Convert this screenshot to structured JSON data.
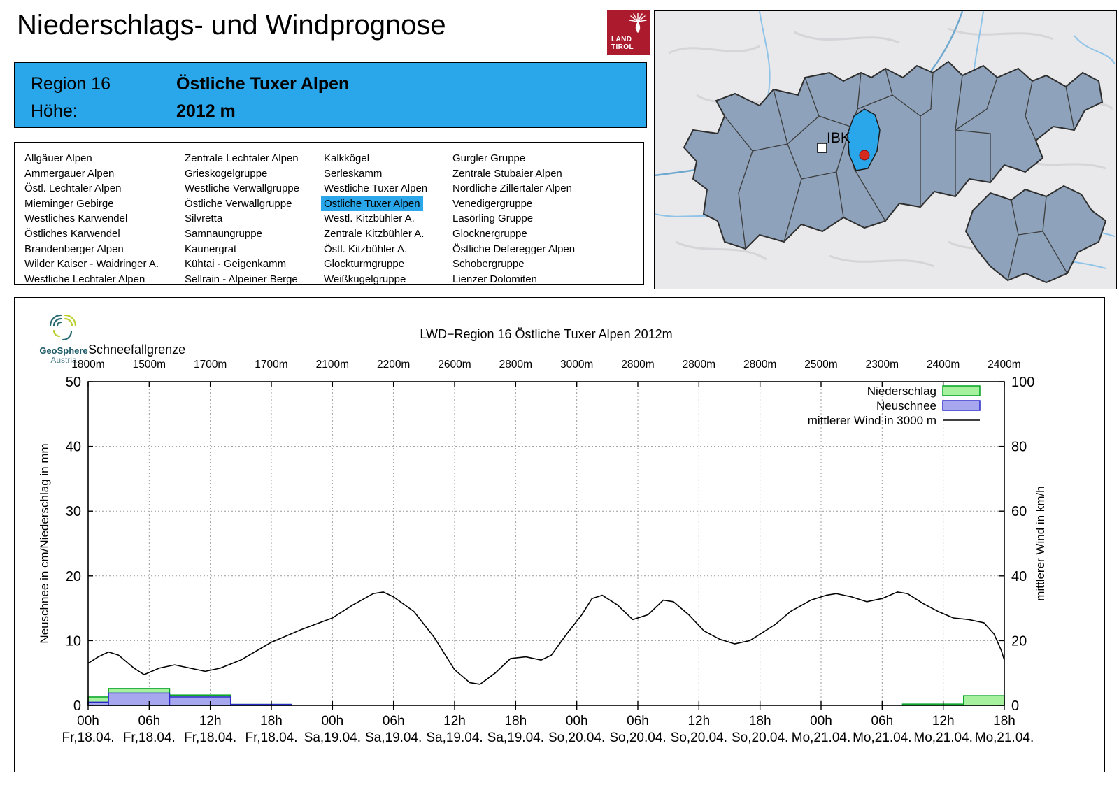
{
  "header": {
    "title": "Niederschlags- und Windprognose"
  },
  "logo": {
    "line1": "LAND",
    "line2": "TIROL"
  },
  "region_box": {
    "region_label": "Region 16",
    "region_name": "Östliche Tuxer Alpen",
    "hoehe_label": "Höhe:",
    "hoehe_value": "2012 m"
  },
  "region_list": {
    "selected": "Östliche Tuxer Alpen",
    "columns": [
      [
        "Allgäuer Alpen",
        "Ammergauer Alpen",
        "Östl. Lechtaler Alpen",
        "Mieminger Gebirge",
        "Westliches Karwendel",
        "Östliches Karwendel",
        "Brandenberger Alpen",
        "Wilder Kaiser - Waidringer A.",
        "Westliche Lechtaler Alpen"
      ],
      [
        "Zentrale Lechtaler Alpen",
        "Grieskogelgruppe",
        "Westliche Verwallgruppe",
        "Östliche Verwallgruppe",
        "Silvretta",
        "Samnaungruppe",
        "Kaunergrat",
        "Kühtai - Geigenkamm",
        "Sellrain - Alpeiner Berge"
      ],
      [
        "Kalkkögel",
        "Serleskamm",
        "Westliche Tuxer Alpen",
        "Östliche Tuxer Alpen",
        "Westl. Kitzbühler A.",
        "Zentrale Kitzbühler A.",
        "Östl. Kitzbühler A.",
        "Glockturmgruppe",
        "Weißkugelgruppe"
      ],
      [
        "Gurgler Gruppe",
        "Zentrale Stubaier Alpen",
        "Nördliche Zillertaler Alpen",
        "Venedigergruppe",
        "Lasörling Gruppe",
        "Glocknergruppe",
        "Östliche Deferegger Alpen",
        "Schobergruppe",
        "Lienzer Dolomiten"
      ]
    ]
  },
  "map": {
    "city_label": "IBK",
    "highlight_color": "#29A7EA",
    "marker_color": "#D42B1E"
  },
  "geosphere": {
    "name": "GeoSphere",
    "sub": "Austria"
  },
  "chart_data": {
    "type": "line+bar",
    "title": "LWD−Region 16 Östliche Tuxer Alpen 2012m",
    "grid": true,
    "legend_position": "top-right",
    "x": {
      "span_hours": 90,
      "tick_step_hours": 6,
      "ticks": [
        {
          "hour": "00h",
          "date": "Fr,18.04."
        },
        {
          "hour": "06h",
          "date": "Fr,18.04."
        },
        {
          "hour": "12h",
          "date": "Fr,18.04."
        },
        {
          "hour": "18h",
          "date": "Fr,18.04."
        },
        {
          "hour": "00h",
          "date": "Sa,19.04."
        },
        {
          "hour": "06h",
          "date": "Sa,19.04."
        },
        {
          "hour": "12h",
          "date": "Sa,19.04."
        },
        {
          "hour": "18h",
          "date": "Sa,19.04."
        },
        {
          "hour": "00h",
          "date": "So,20.04."
        },
        {
          "hour": "06h",
          "date": "So,20.04."
        },
        {
          "hour": "12h",
          "date": "So,20.04."
        },
        {
          "hour": "18h",
          "date": "So,20.04."
        },
        {
          "hour": "00h",
          "date": "Mo,21.04."
        },
        {
          "hour": "06h",
          "date": "Mo,21.04."
        },
        {
          "hour": "12h",
          "date": "Mo,21.04."
        },
        {
          "hour": "18h",
          "date": "Mo,21.04."
        }
      ]
    },
    "snowline": {
      "label": "Schneefallgrenze",
      "unit": "m",
      "values": [
        1800,
        1500,
        1700,
        1700,
        2100,
        2200,
        2600,
        2800,
        3000,
        2800,
        2800,
        2800,
        2500,
        2300,
        2400,
        2400
      ]
    },
    "y_left": {
      "label": "Neuschnee in cm/Niederschlag in mm",
      "min": 0,
      "max": 50,
      "ticks": [
        0,
        10,
        20,
        30,
        40,
        50
      ]
    },
    "y_right": {
      "label": "mittlerer Wind in km/h",
      "min": 0,
      "max": 100,
      "ticks": [
        0,
        20,
        40,
        60,
        80,
        100
      ]
    },
    "series": [
      {
        "name": "Niederschlag",
        "type": "bar",
        "axis": "left",
        "unit": "mm",
        "fill": "#a6f19e",
        "border": "#00a321",
        "periods": [
          {
            "from_h": 0,
            "to_h": 2,
            "value": 1.3
          },
          {
            "from_h": 2,
            "to_h": 8,
            "value": 2.6
          },
          {
            "from_h": 8,
            "to_h": 14,
            "value": 1.6
          },
          {
            "from_h": 14,
            "to_h": 20,
            "value": 0.15
          },
          {
            "from_h": 80,
            "to_h": 86,
            "value": 0.2
          },
          {
            "from_h": 86,
            "to_h": 90,
            "value": 1.5
          }
        ]
      },
      {
        "name": "Neuschnee",
        "type": "bar",
        "axis": "left",
        "unit": "cm",
        "fill": "#a7a7ef",
        "border": "#2929c8",
        "periods": [
          {
            "from_h": 0,
            "to_h": 2,
            "value": 0.5
          },
          {
            "from_h": 2,
            "to_h": 8,
            "value": 1.9
          },
          {
            "from_h": 8,
            "to_h": 14,
            "value": 1.3
          },
          {
            "from_h": 14,
            "to_h": 20,
            "value": 0.15
          }
        ]
      },
      {
        "name": "mittlerer Wind in 3000 m",
        "type": "line",
        "axis": "right",
        "unit": "km/h",
        "color": "#000000",
        "points": [
          [
            0,
            13
          ],
          [
            1,
            15
          ],
          [
            2,
            16.5
          ],
          [
            3,
            15.5
          ],
          [
            4.5,
            11.5
          ],
          [
            5.5,
            9.5
          ],
          [
            7,
            11.5
          ],
          [
            8.5,
            12.5
          ],
          [
            10,
            11.5
          ],
          [
            11.5,
            10.5
          ],
          [
            13,
            11.5
          ],
          [
            15,
            14
          ],
          [
            18,
            19.5
          ],
          [
            21,
            23.5
          ],
          [
            24,
            27
          ],
          [
            26,
            31
          ],
          [
            28,
            34.5
          ],
          [
            29,
            35
          ],
          [
            30,
            33.5
          ],
          [
            32,
            29
          ],
          [
            34,
            21
          ],
          [
            36,
            11
          ],
          [
            37.5,
            7
          ],
          [
            38.5,
            6.5
          ],
          [
            40,
            10
          ],
          [
            41.5,
            14.5
          ],
          [
            43,
            15
          ],
          [
            44.5,
            14
          ],
          [
            45.5,
            15.5
          ],
          [
            47,
            22
          ],
          [
            48.5,
            28
          ],
          [
            49.5,
            33
          ],
          [
            50.5,
            34
          ],
          [
            52,
            31
          ],
          [
            53.5,
            26.5
          ],
          [
            55,
            28
          ],
          [
            56.5,
            32.5
          ],
          [
            57.5,
            32
          ],
          [
            59,
            28
          ],
          [
            60.5,
            23
          ],
          [
            62,
            20.5
          ],
          [
            63.5,
            19
          ],
          [
            65,
            20
          ],
          [
            66,
            22
          ],
          [
            67.5,
            25
          ],
          [
            69,
            29
          ],
          [
            71,
            32.5
          ],
          [
            72.5,
            34
          ],
          [
            73.5,
            34.5
          ],
          [
            75,
            33.5
          ],
          [
            76.5,
            32
          ],
          [
            78,
            33
          ],
          [
            79.5,
            35
          ],
          [
            80.5,
            34.5
          ],
          [
            82,
            31.5
          ],
          [
            83.5,
            29
          ],
          [
            85,
            27
          ],
          [
            86.5,
            26.5
          ],
          [
            88,
            25.5
          ],
          [
            89,
            22
          ],
          [
            89.7,
            17
          ],
          [
            90,
            14
          ]
        ]
      }
    ]
  }
}
